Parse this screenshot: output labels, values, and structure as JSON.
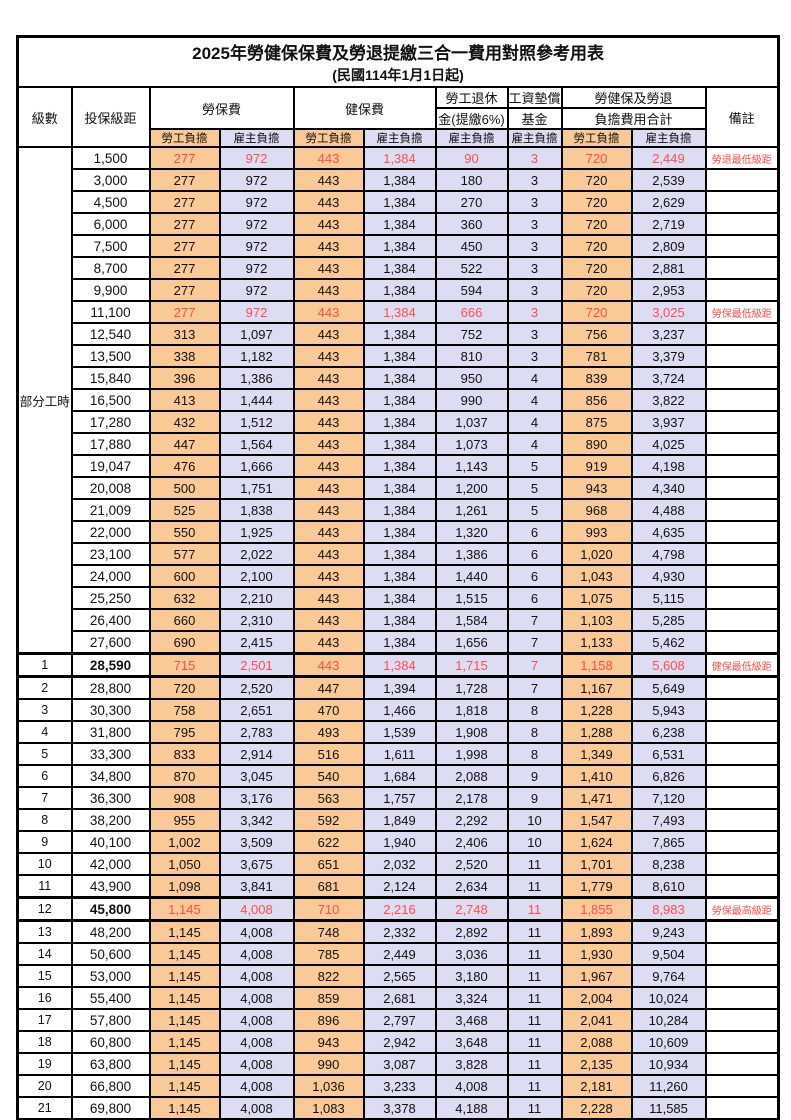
{
  "title": {
    "main": "2025年勞健保保費及勞退提繳三合一費用對照參考用表",
    "sub": "(民國114年1月1日起)"
  },
  "colors": {
    "employee_share_bg": "#F9CA96",
    "employer_share_bg": "#DCDCF2",
    "highlight_text": "#FF4D4D",
    "border": "#000000"
  },
  "table": {
    "headers": {
      "level": "級數",
      "bracket": "投保級距",
      "labor_group": "勞保費",
      "health_group": "健保費",
      "pension_line1": "勞工退休",
      "pension_line2": "金(提繳6%)",
      "fund_line1": "工資墊償",
      "fund_line2": "基金",
      "total_line1": "勞健保及勞退",
      "total_line2": "負擔費用合計",
      "remark": "備註",
      "employee": "勞工負擔",
      "employer": "雇主負擔"
    },
    "part_time_label": "部分工時",
    "part_time_span": 23,
    "rows": [
      {
        "lv": "",
        "b": "1,500",
        "v": [
          "277",
          "972",
          "443",
          "1,384",
          "90",
          "3",
          "720",
          "2,449"
        ],
        "r": "勞退最低級距",
        "red": true
      },
      {
        "lv": "",
        "b": "3,000",
        "v": [
          "277",
          "972",
          "443",
          "1,384",
          "180",
          "3",
          "720",
          "2,539"
        ],
        "r": ""
      },
      {
        "lv": "",
        "b": "4,500",
        "v": [
          "277",
          "972",
          "443",
          "1,384",
          "270",
          "3",
          "720",
          "2,629"
        ],
        "r": ""
      },
      {
        "lv": "",
        "b": "6,000",
        "v": [
          "277",
          "972",
          "443",
          "1,384",
          "360",
          "3",
          "720",
          "2,719"
        ],
        "r": ""
      },
      {
        "lv": "",
        "b": "7,500",
        "v": [
          "277",
          "972",
          "443",
          "1,384",
          "450",
          "3",
          "720",
          "2,809"
        ],
        "r": ""
      },
      {
        "lv": "",
        "b": "8,700",
        "v": [
          "277",
          "972",
          "443",
          "1,384",
          "522",
          "3",
          "720",
          "2,881"
        ],
        "r": ""
      },
      {
        "lv": "",
        "b": "9,900",
        "v": [
          "277",
          "972",
          "443",
          "1,384",
          "594",
          "3",
          "720",
          "2,953"
        ],
        "r": ""
      },
      {
        "lv": "",
        "b": "11,100",
        "v": [
          "277",
          "972",
          "443",
          "1,384",
          "666",
          "3",
          "720",
          "3,025"
        ],
        "r": "勞保最低級距",
        "red": true
      },
      {
        "lv": "",
        "b": "12,540",
        "v": [
          "313",
          "1,097",
          "443",
          "1,384",
          "752",
          "3",
          "756",
          "3,237"
        ],
        "r": ""
      },
      {
        "lv": "",
        "b": "13,500",
        "v": [
          "338",
          "1,182",
          "443",
          "1,384",
          "810",
          "3",
          "781",
          "3,379"
        ],
        "r": ""
      },
      {
        "lv": "",
        "b": "15,840",
        "v": [
          "396",
          "1,386",
          "443",
          "1,384",
          "950",
          "4",
          "839",
          "3,724"
        ],
        "r": ""
      },
      {
        "lv": "",
        "b": "16,500",
        "v": [
          "413",
          "1,444",
          "443",
          "1,384",
          "990",
          "4",
          "856",
          "3,822"
        ],
        "r": ""
      },
      {
        "lv": "",
        "b": "17,280",
        "v": [
          "432",
          "1,512",
          "443",
          "1,384",
          "1,037",
          "4",
          "875",
          "3,937"
        ],
        "r": ""
      },
      {
        "lv": "",
        "b": "17,880",
        "v": [
          "447",
          "1,564",
          "443",
          "1,384",
          "1,073",
          "4",
          "890",
          "4,025"
        ],
        "r": ""
      },
      {
        "lv": "",
        "b": "19,047",
        "v": [
          "476",
          "1,666",
          "443",
          "1,384",
          "1,143",
          "5",
          "919",
          "4,198"
        ],
        "r": ""
      },
      {
        "lv": "",
        "b": "20,008",
        "v": [
          "500",
          "1,751",
          "443",
          "1,384",
          "1,200",
          "5",
          "943",
          "4,340"
        ],
        "r": ""
      },
      {
        "lv": "",
        "b": "21,009",
        "v": [
          "525",
          "1,838",
          "443",
          "1,384",
          "1,261",
          "5",
          "968",
          "4,488"
        ],
        "r": ""
      },
      {
        "lv": "",
        "b": "22,000",
        "v": [
          "550",
          "1,925",
          "443",
          "1,384",
          "1,320",
          "6",
          "993",
          "4,635"
        ],
        "r": ""
      },
      {
        "lv": "",
        "b": "23,100",
        "v": [
          "577",
          "2,022",
          "443",
          "1,384",
          "1,386",
          "6",
          "1,020",
          "4,798"
        ],
        "r": ""
      },
      {
        "lv": "",
        "b": "24,000",
        "v": [
          "600",
          "2,100",
          "443",
          "1,384",
          "1,440",
          "6",
          "1,043",
          "4,930"
        ],
        "r": ""
      },
      {
        "lv": "",
        "b": "25,250",
        "v": [
          "632",
          "2,210",
          "443",
          "1,384",
          "1,515",
          "6",
          "1,075",
          "5,115"
        ],
        "r": ""
      },
      {
        "lv": "",
        "b": "26,400",
        "v": [
          "660",
          "2,310",
          "443",
          "1,384",
          "1,584",
          "7",
          "1,103",
          "5,285"
        ],
        "r": ""
      },
      {
        "lv": "",
        "b": "27,600",
        "v": [
          "690",
          "2,415",
          "443",
          "1,384",
          "1,656",
          "7",
          "1,133",
          "5,462"
        ],
        "r": ""
      },
      {
        "lv": "1",
        "b": "28,590",
        "v": [
          "715",
          "2,501",
          "443",
          "1,384",
          "1,715",
          "7",
          "1,158",
          "5,608"
        ],
        "r": "健保最低級距",
        "red": true,
        "hl": true,
        "bold": true
      },
      {
        "lv": "2",
        "b": "28,800",
        "v": [
          "720",
          "2,520",
          "447",
          "1,394",
          "1,728",
          "7",
          "1,167",
          "5,649"
        ],
        "r": ""
      },
      {
        "lv": "3",
        "b": "30,300",
        "v": [
          "758",
          "2,651",
          "470",
          "1,466",
          "1,818",
          "8",
          "1,228",
          "5,943"
        ],
        "r": ""
      },
      {
        "lv": "4",
        "b": "31,800",
        "v": [
          "795",
          "2,783",
          "493",
          "1,539",
          "1,908",
          "8",
          "1,288",
          "6,238"
        ],
        "r": ""
      },
      {
        "lv": "5",
        "b": "33,300",
        "v": [
          "833",
          "2,914",
          "516",
          "1,611",
          "1,998",
          "8",
          "1,349",
          "6,531"
        ],
        "r": ""
      },
      {
        "lv": "6",
        "b": "34,800",
        "v": [
          "870",
          "3,045",
          "540",
          "1,684",
          "2,088",
          "9",
          "1,410",
          "6,826"
        ],
        "r": ""
      },
      {
        "lv": "7",
        "b": "36,300",
        "v": [
          "908",
          "3,176",
          "563",
          "1,757",
          "2,178",
          "9",
          "1,471",
          "7,120"
        ],
        "r": ""
      },
      {
        "lv": "8",
        "b": "38,200",
        "v": [
          "955",
          "3,342",
          "592",
          "1,849",
          "2,292",
          "10",
          "1,547",
          "7,493"
        ],
        "r": ""
      },
      {
        "lv": "9",
        "b": "40,100",
        "v": [
          "1,002",
          "3,509",
          "622",
          "1,940",
          "2,406",
          "10",
          "1,624",
          "7,865"
        ],
        "r": ""
      },
      {
        "lv": "10",
        "b": "42,000",
        "v": [
          "1,050",
          "3,675",
          "651",
          "2,032",
          "2,520",
          "11",
          "1,701",
          "8,238"
        ],
        "r": ""
      },
      {
        "lv": "11",
        "b": "43,900",
        "v": [
          "1,098",
          "3,841",
          "681",
          "2,124",
          "2,634",
          "11",
          "1,779",
          "8,610"
        ],
        "r": ""
      },
      {
        "lv": "12",
        "b": "45,800",
        "v": [
          "1,145",
          "4,008",
          "710",
          "2,216",
          "2,748",
          "11",
          "1,855",
          "8,983"
        ],
        "r": "勞保最高級距",
        "red": true,
        "hl": true,
        "bold": true
      },
      {
        "lv": "13",
        "b": "48,200",
        "v": [
          "1,145",
          "4,008",
          "748",
          "2,332",
          "2,892",
          "11",
          "1,893",
          "9,243"
        ],
        "r": ""
      },
      {
        "lv": "14",
        "b": "50,600",
        "v": [
          "1,145",
          "4,008",
          "785",
          "2,449",
          "3,036",
          "11",
          "1,930",
          "9,504"
        ],
        "r": ""
      },
      {
        "lv": "15",
        "b": "53,000",
        "v": [
          "1,145",
          "4,008",
          "822",
          "2,565",
          "3,180",
          "11",
          "1,967",
          "9,764"
        ],
        "r": ""
      },
      {
        "lv": "16",
        "b": "55,400",
        "v": [
          "1,145",
          "4,008",
          "859",
          "2,681",
          "3,324",
          "11",
          "2,004",
          "10,024"
        ],
        "r": ""
      },
      {
        "lv": "17",
        "b": "57,800",
        "v": [
          "1,145",
          "4,008",
          "896",
          "2,797",
          "3,468",
          "11",
          "2,041",
          "10,284"
        ],
        "r": ""
      },
      {
        "lv": "18",
        "b": "60,800",
        "v": [
          "1,145",
          "4,008",
          "943",
          "2,942",
          "3,648",
          "11",
          "2,088",
          "10,609"
        ],
        "r": ""
      },
      {
        "lv": "19",
        "b": "63,800",
        "v": [
          "1,145",
          "4,008",
          "990",
          "3,087",
          "3,828",
          "11",
          "2,135",
          "10,934"
        ],
        "r": ""
      },
      {
        "lv": "20",
        "b": "66,800",
        "v": [
          "1,145",
          "4,008",
          "1,036",
          "3,233",
          "4,008",
          "11",
          "2,181",
          "11,260"
        ],
        "r": ""
      },
      {
        "lv": "21",
        "b": "69,800",
        "v": [
          "1,145",
          "4,008",
          "1,083",
          "3,378",
          "4,188",
          "11",
          "2,228",
          "11,585"
        ],
        "r": ""
      }
    ]
  }
}
